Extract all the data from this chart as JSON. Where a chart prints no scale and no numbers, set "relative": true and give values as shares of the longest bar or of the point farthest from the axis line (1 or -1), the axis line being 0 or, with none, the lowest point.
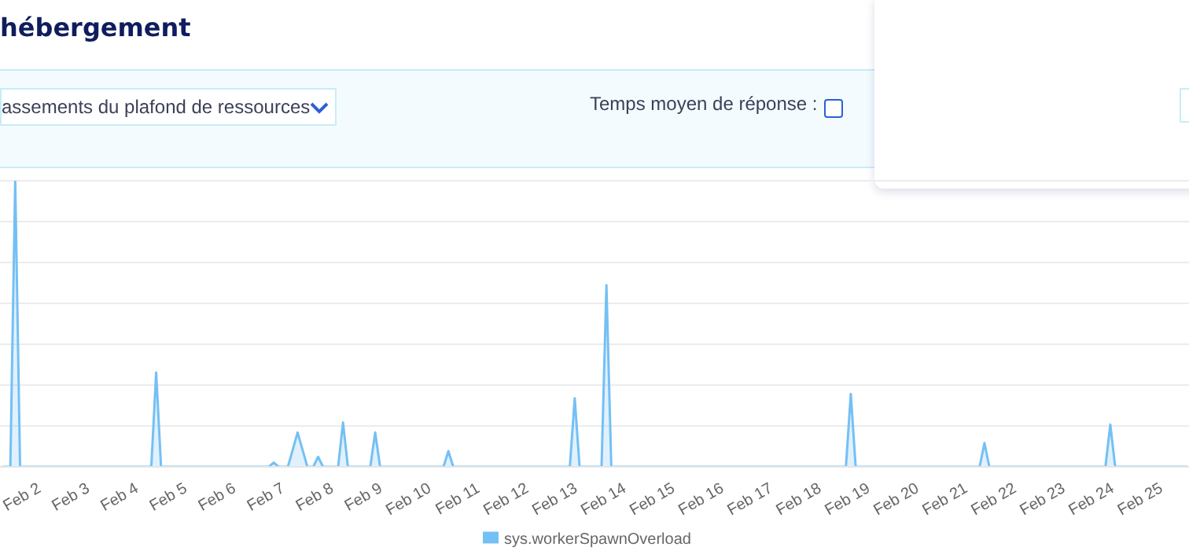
{
  "chart_data": {
    "type": "area",
    "title": "hébergement",
    "relative": true,
    "grid": "y",
    "legend": "bottom",
    "marker": "none",
    "annotations": [
      "assements du plafond de ressources",
      "Temps moyen de réponse :"
    ],
    "x": [
      "--02-01T06:00",
      "--02-01T10:05",
      "--02-01T12:29",
      "--02-01T14:53",
      "--02-04T07:26",
      "--02-04T09:50",
      "--02-04T12:14",
      "--02-06T17:17",
      "--02-06T19:41",
      "--02-06T22:05",
      "--02-07T02:38",
      "--02-07T07:26",
      "--02-07T12:14",
      "--02-07T15:07",
      "--02-07T17:31",
      "--02-07T19:55",
      "--02-08T03:22",
      "--02-08T05:46",
      "--02-08T08:10",
      "--02-08T19:12",
      "--02-08T21:36",
      "--02-09T00:00",
      "--02-10T07:12",
      "--02-10T09:36",
      "--02-10T12:00",
      "--02-12T21:22",
      "--02-12T23:46",
      "--02-13T02:10",
      "--02-13T12:58",
      "--02-13T15:22",
      "--02-13T17:46",
      "--02-18T13:12",
      "--02-18T15:36",
      "--02-18T18:00",
      "--02-21T06:58",
      "--02-21T09:22",
      "--02-21T11:46",
      "--02-23T20:53",
      "--02-23T23:17",
      "--02-24T01:41",
      "--02-25T13:12"
    ],
    "xlim": [
      "--02-01T05:00",
      "--02-25T14:00"
    ],
    "xticks": [
      {
        "value": "--02-02",
        "label": "Feb 2"
      },
      {
        "value": "--02-03",
        "label": "Feb 3"
      },
      {
        "value": "--02-04",
        "label": "Feb 4"
      },
      {
        "value": "--02-05",
        "label": "Feb 5"
      },
      {
        "value": "--02-06",
        "label": "Feb 6"
      },
      {
        "value": "--02-07",
        "label": "Feb 7"
      },
      {
        "value": "--02-08",
        "label": "Feb 8"
      },
      {
        "value": "--02-09",
        "label": "Feb 9"
      },
      {
        "value": "--02-10",
        "label": "Feb 10"
      },
      {
        "value": "--02-11",
        "label": "Feb 11"
      },
      {
        "value": "--02-12",
        "label": "Feb 12"
      },
      {
        "value": "--02-13",
        "label": "Feb 13"
      },
      {
        "value": "--02-14",
        "label": "Feb 14"
      },
      {
        "value": "--02-15",
        "label": "Feb 15"
      },
      {
        "value": "--02-16",
        "label": "Feb 16"
      },
      {
        "value": "--02-17",
        "label": "Feb 17"
      },
      {
        "value": "--02-18",
        "label": "Feb 18"
      },
      {
        "value": "--02-19",
        "label": "Feb 19"
      },
      {
        "value": "--02-20",
        "label": "Feb 20"
      },
      {
        "value": "--02-21",
        "label": "Feb 21"
      },
      {
        "value": "--02-22",
        "label": "Feb 22"
      },
      {
        "value": "--02-23",
        "label": "Feb 23"
      },
      {
        "value": "--02-24",
        "label": "Feb 24"
      },
      {
        "value": "--02-25",
        "label": "Feb 25"
      }
    ],
    "series": [
      {
        "name": "sys.workerSpawnOverload",
        "color": "#74c0f4",
        "values": [
          0,
          0,
          1,
          0,
          0,
          0.33,
          0,
          0,
          0.015,
          0,
          0,
          0.12,
          0,
          0,
          0.035,
          0,
          0,
          0.155,
          0,
          0,
          0.12,
          0,
          0,
          0.055,
          0,
          0,
          0.24,
          0,
          0,
          0.635,
          0,
          0,
          0.255,
          0,
          0,
          0.083,
          0,
          0,
          0.148,
          0,
          0
        ]
      }
    ]
  }
}
